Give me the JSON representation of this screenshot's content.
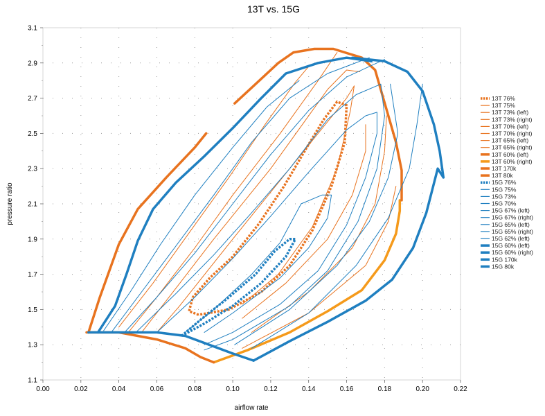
{
  "chart_data": {
    "type": "line",
    "title": "13T vs. 15G",
    "xlabel": "airflow rate",
    "ylabel": "pressure ratio",
    "xlim": [
      0.0,
      0.22
    ],
    "ylim": [
      1.1,
      3.1
    ],
    "x_ticks": [
      "0.00",
      "0.02",
      "0.04",
      "0.06",
      "0.08",
      "0.10",
      "0.12",
      "0.14",
      "0.16",
      "0.18",
      "0.20",
      "0.22"
    ],
    "y_ticks": [
      "1.1",
      "1.3",
      "1.5",
      "1.7",
      "1.9",
      "2.1",
      "2.3",
      "2.5",
      "2.7",
      "2.9",
      "3.1"
    ],
    "grid": "dotted",
    "legend_position": "right",
    "colors": {
      "t13": "#e8731f",
      "t13_light": "#f59a1b",
      "g15": "#1f7fc0"
    },
    "series": [
      {
        "name": "13T 76%",
        "color": "#e8731f",
        "width": 3.5,
        "dash": "3,2",
        "points": [
          [
            0.082,
            1.47
          ],
          [
            0.077,
            1.49
          ],
          [
            0.079,
            1.57
          ],
          [
            0.088,
            1.68
          ],
          [
            0.1,
            1.8
          ],
          [
            0.114,
            1.99
          ],
          [
            0.127,
            2.2
          ],
          [
            0.139,
            2.42
          ],
          [
            0.148,
            2.58
          ],
          [
            0.155,
            2.68
          ],
          [
            0.16,
            2.66
          ],
          [
            0.159,
            2.45
          ],
          [
            0.152,
            2.2
          ],
          [
            0.142,
            1.95
          ],
          [
            0.13,
            1.75
          ],
          [
            0.115,
            1.6
          ],
          [
            0.098,
            1.5
          ],
          [
            0.082,
            1.47
          ]
        ]
      },
      {
        "name": "13T 75%",
        "color": "#e8731f",
        "width": 1,
        "points": [
          [
            0.06,
            1.37
          ],
          [
            0.072,
            1.52
          ],
          [
            0.1,
            1.9
          ],
          [
            0.13,
            2.3
          ],
          [
            0.16,
            2.7
          ],
          [
            0.164,
            2.77
          ],
          [
            0.162,
            2.63
          ],
          [
            0.155,
            2.3
          ],
          [
            0.142,
            1.97
          ],
          [
            0.124,
            1.7
          ],
          [
            0.105,
            1.53
          ]
        ]
      },
      {
        "name": "13T 73% (left)",
        "color": "#e8731f",
        "width": 1,
        "points": [
          [
            0.052,
            1.37
          ],
          [
            0.07,
            1.62
          ],
          [
            0.09,
            1.9
          ],
          [
            0.12,
            2.3
          ],
          [
            0.15,
            2.75
          ],
          [
            0.16,
            2.86
          ],
          [
            0.167,
            2.85
          ]
        ]
      },
      {
        "name": "13T 73% (right)",
        "color": "#e8731f",
        "width": 1,
        "points": [
          [
            0.105,
            1.45
          ],
          [
            0.128,
            1.65
          ],
          [
            0.15,
            1.9
          ],
          [
            0.163,
            2.15
          ],
          [
            0.17,
            2.4
          ],
          [
            0.17,
            2.55
          ]
        ]
      },
      {
        "name": "13T 70% (left)",
        "color": "#e8731f",
        "width": 1,
        "points": [
          [
            0.045,
            1.37
          ],
          [
            0.06,
            1.57
          ],
          [
            0.08,
            1.85
          ],
          [
            0.1,
            2.15
          ],
          [
            0.125,
            2.5
          ],
          [
            0.145,
            2.8
          ],
          [
            0.155,
            2.96
          ]
        ]
      },
      {
        "name": "13T 70% (right)",
        "color": "#e8731f",
        "width": 1,
        "points": [
          [
            0.11,
            1.37
          ],
          [
            0.14,
            1.6
          ],
          [
            0.163,
            1.85
          ],
          [
            0.175,
            2.1
          ],
          [
            0.18,
            2.4
          ],
          [
            0.181,
            2.6
          ]
        ]
      },
      {
        "name": "13T 65% (left)",
        "color": "#e8731f",
        "width": 1,
        "points": [
          [
            0.04,
            1.4
          ],
          [
            0.058,
            1.65
          ],
          [
            0.078,
            1.95
          ],
          [
            0.098,
            2.25
          ],
          [
            0.117,
            2.55
          ],
          [
            0.133,
            2.79
          ],
          [
            0.14,
            2.88
          ]
        ]
      },
      {
        "name": "13T 65% (right)",
        "color": "#e8731f",
        "width": 1,
        "points": [
          [
            0.105,
            1.28
          ],
          [
            0.14,
            1.48
          ],
          [
            0.17,
            1.75
          ],
          [
            0.182,
            2.0
          ],
          [
            0.186,
            2.2
          ]
        ]
      },
      {
        "name": "13T 60% (left)",
        "color": "#e8731f",
        "width": 3.5,
        "points": [
          [
            0.024,
            1.37
          ],
          [
            0.03,
            1.57
          ],
          [
            0.04,
            1.87
          ],
          [
            0.05,
            2.07
          ],
          [
            0.065,
            2.25
          ],
          [
            0.08,
            2.42
          ],
          [
            0.086,
            2.5
          ]
        ]
      },
      {
        "name": "13T 60% (right)",
        "color": "#f59a1b",
        "width": 3.5,
        "points": [
          [
            0.09,
            1.2
          ],
          [
            0.108,
            1.27
          ],
          [
            0.13,
            1.37
          ],
          [
            0.15,
            1.49
          ],
          [
            0.168,
            1.61
          ],
          [
            0.18,
            1.78
          ],
          [
            0.186,
            1.93
          ],
          [
            0.188,
            2.06
          ],
          [
            0.188,
            2.12
          ]
        ]
      },
      {
        "name": "13T 170k",
        "color": "#e8731f",
        "width": 3.5,
        "points": [
          [
            0.101,
            2.67
          ],
          [
            0.112,
            2.78
          ],
          [
            0.12,
            2.86
          ],
          [
            0.124,
            2.9
          ],
          [
            0.128,
            2.93
          ],
          [
            0.132,
            2.96
          ],
          [
            0.143,
            2.98
          ],
          [
            0.153,
            2.98
          ],
          [
            0.168,
            2.93
          ],
          [
            0.175,
            2.86
          ],
          [
            0.182,
            2.6
          ],
          [
            0.186,
            2.45
          ],
          [
            0.189,
            2.29
          ],
          [
            0.189,
            2.12
          ]
        ]
      },
      {
        "name": "13T 80k",
        "color": "#e8731f",
        "width": 3.5,
        "points": [
          [
            0.023,
            1.37
          ],
          [
            0.04,
            1.37
          ],
          [
            0.06,
            1.33
          ],
          [
            0.075,
            1.28
          ],
          [
            0.083,
            1.23
          ],
          [
            0.09,
            1.2
          ]
        ]
      },
      {
        "name": "15G 76%",
        "color": "#1f7fc0",
        "width": 3.5,
        "dash": "3,2",
        "points": [
          [
            0.073,
            1.35
          ],
          [
            0.084,
            1.45
          ],
          [
            0.098,
            1.57
          ],
          [
            0.112,
            1.7
          ],
          [
            0.122,
            1.83
          ],
          [
            0.13,
            1.9
          ],
          [
            0.133,
            1.9
          ],
          [
            0.128,
            1.8
          ],
          [
            0.115,
            1.65
          ],
          [
            0.1,
            1.52
          ],
          [
            0.085,
            1.42
          ],
          [
            0.073,
            1.35
          ]
        ]
      },
      {
        "name": "15G 75%",
        "color": "#1f7fc0",
        "width": 1,
        "points": [
          [
            0.075,
            1.37
          ],
          [
            0.09,
            1.5
          ],
          [
            0.11,
            1.7
          ],
          [
            0.125,
            1.88
          ],
          [
            0.136,
            2.1
          ],
          [
            0.147,
            2.15
          ],
          [
            0.152,
            2.15
          ],
          [
            0.15,
            2.02
          ],
          [
            0.14,
            1.85
          ],
          [
            0.125,
            1.68
          ],
          [
            0.1,
            1.48
          ],
          [
            0.085,
            1.37
          ]
        ]
      },
      {
        "name": "15G 73%",
        "color": "#1f7fc0",
        "width": 1,
        "points": [
          [
            0.06,
            1.37
          ],
          [
            0.08,
            1.57
          ],
          [
            0.1,
            1.79
          ],
          [
            0.12,
            2.03
          ],
          [
            0.14,
            2.28
          ],
          [
            0.16,
            2.52
          ],
          [
            0.17,
            2.6
          ],
          [
            0.176,
            2.62
          ],
          [
            0.176,
            2.5
          ],
          [
            0.17,
            2.25
          ],
          [
            0.16,
            1.98
          ],
          [
            0.145,
            1.72
          ],
          [
            0.125,
            1.53
          ],
          [
            0.1,
            1.37
          ],
          [
            0.085,
            1.3
          ]
        ]
      },
      {
        "name": "15G 70%",
        "color": "#1f7fc0",
        "width": 1,
        "points": [
          [
            0.049,
            1.37
          ],
          [
            0.07,
            1.59
          ],
          [
            0.09,
            1.81
          ],
          [
            0.11,
            2.05
          ],
          [
            0.13,
            2.3
          ],
          [
            0.15,
            2.58
          ],
          [
            0.165,
            2.72
          ],
          [
            0.178,
            2.78
          ],
          [
            0.18,
            2.6
          ],
          [
            0.176,
            2.3
          ],
          [
            0.166,
            2.0
          ],
          [
            0.15,
            1.72
          ],
          [
            0.13,
            1.52
          ],
          [
            0.1,
            1.33
          ],
          [
            0.085,
            1.27
          ]
        ]
      },
      {
        "name": "15G 67% (left)",
        "color": "#1f7fc0",
        "width": 1,
        "points": [
          [
            0.043,
            1.37
          ],
          [
            0.06,
            1.57
          ],
          [
            0.08,
            1.82
          ],
          [
            0.1,
            2.1
          ],
          [
            0.12,
            2.38
          ],
          [
            0.14,
            2.63
          ],
          [
            0.16,
            2.82
          ],
          [
            0.18,
            2.92
          ]
        ]
      },
      {
        "name": "15G 67% (right)",
        "color": "#1f7fc0",
        "width": 1,
        "points": [
          [
            0.101,
            1.3
          ],
          [
            0.13,
            1.5
          ],
          [
            0.155,
            1.75
          ],
          [
            0.172,
            2.0
          ],
          [
            0.182,
            2.25
          ],
          [
            0.187,
            2.5
          ],
          [
            0.183,
            2.78
          ]
        ]
      },
      {
        "name": "15G 65% (left)",
        "color": "#1f7fc0",
        "width": 1,
        "points": [
          [
            0.036,
            1.37
          ],
          [
            0.052,
            1.6
          ],
          [
            0.07,
            1.86
          ],
          [
            0.09,
            2.15
          ],
          [
            0.11,
            2.45
          ],
          [
            0.13,
            2.7
          ],
          [
            0.15,
            2.84
          ],
          [
            0.172,
            2.93
          ]
        ]
      },
      {
        "name": "15G 65% (right)",
        "color": "#1f7fc0",
        "width": 1,
        "points": [
          [
            0.11,
            1.28
          ],
          [
            0.14,
            1.48
          ],
          [
            0.165,
            1.75
          ],
          [
            0.182,
            2.02
          ],
          [
            0.193,
            2.3
          ],
          [
            0.197,
            2.55
          ],
          [
            0.2,
            2.78
          ]
        ]
      },
      {
        "name": "15G 62% (left)",
        "color": "#1f7fc0",
        "width": 1,
        "points": [
          [
            0.032,
            1.38
          ],
          [
            0.046,
            1.6
          ],
          [
            0.062,
            1.87
          ],
          [
            0.08,
            2.15
          ],
          [
            0.1,
            2.42
          ],
          [
            0.118,
            2.65
          ],
          [
            0.135,
            2.8
          ]
        ]
      },
      {
        "name": "15G 60% (left)",
        "color": "#1f7fc0",
        "width": 3.5,
        "points": [
          [
            0.029,
            1.37
          ],
          [
            0.038,
            1.52
          ],
          [
            0.044,
            1.7
          ],
          [
            0.05,
            1.89
          ],
          [
            0.058,
            2.07
          ],
          [
            0.07,
            2.22
          ],
          [
            0.085,
            2.37
          ],
          [
            0.1,
            2.53
          ],
          [
            0.115,
            2.7
          ],
          [
            0.128,
            2.84
          ],
          [
            0.145,
            2.9
          ],
          [
            0.16,
            2.93
          ],
          [
            0.173,
            2.91
          ]
        ]
      },
      {
        "name": "15G 60% (right)",
        "color": "#1f7fc0",
        "width": 3.5,
        "points": [
          [
            0.111,
            1.21
          ],
          [
            0.13,
            1.32
          ],
          [
            0.15,
            1.43
          ],
          [
            0.17,
            1.55
          ],
          [
            0.184,
            1.67
          ],
          [
            0.195,
            1.85
          ],
          [
            0.202,
            2.05
          ],
          [
            0.208,
            2.3
          ],
          [
            0.211,
            2.25
          ]
        ]
      },
      {
        "name": "15G 170k",
        "color": "#1f7fc0",
        "width": 3.5,
        "points": [
          [
            0.163,
            2.93
          ],
          [
            0.18,
            2.91
          ],
          [
            0.192,
            2.85
          ],
          [
            0.2,
            2.74
          ],
          [
            0.206,
            2.55
          ],
          [
            0.209,
            2.4
          ],
          [
            0.211,
            2.25
          ]
        ]
      },
      {
        "name": "15G 80k",
        "color": "#1f7fc0",
        "width": 3.5,
        "points": [
          [
            0.024,
            1.37
          ],
          [
            0.045,
            1.37
          ],
          [
            0.06,
            1.37
          ],
          [
            0.075,
            1.35
          ],
          [
            0.09,
            1.29
          ],
          [
            0.1,
            1.25
          ],
          [
            0.111,
            1.21
          ]
        ]
      }
    ]
  }
}
